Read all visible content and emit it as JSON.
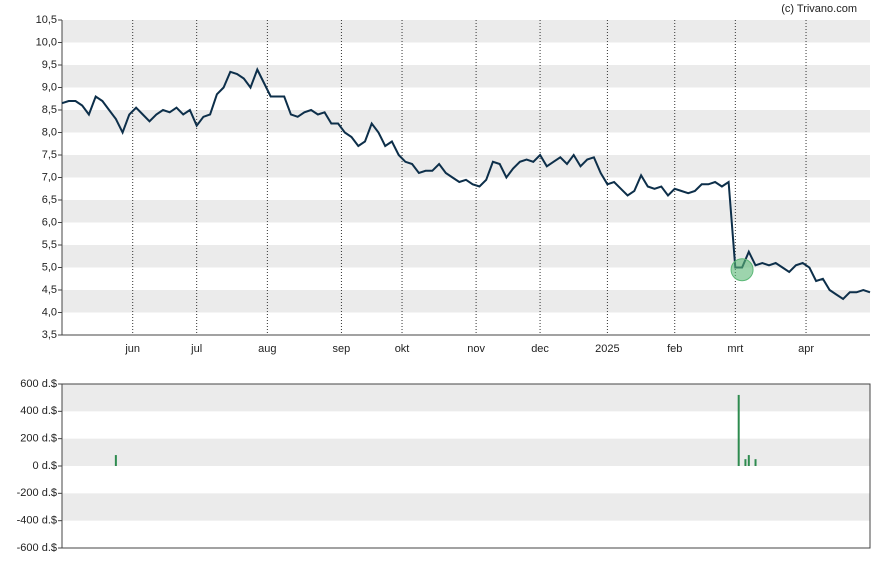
{
  "credit": "(c) Trivano.com",
  "chart_data": [
    {
      "type": "line",
      "color": "#0d2f4a",
      "x": [
        0,
        2,
        4,
        6,
        8,
        10,
        12,
        14,
        16,
        18,
        20,
        22,
        24,
        26,
        28,
        30,
        32,
        34,
        36,
        38,
        40,
        42,
        44,
        46,
        48,
        50,
        52,
        54,
        56,
        58,
        60,
        62,
        64,
        66,
        68,
        70,
        72,
        74,
        76,
        78,
        80,
        82,
        84,
        86,
        88,
        90,
        92,
        94,
        96,
        98,
        100,
        102,
        104,
        106,
        108,
        110,
        112,
        114,
        116,
        118,
        120,
        122,
        124,
        126,
        128,
        130,
        132,
        134,
        136,
        138,
        140,
        142,
        144,
        146,
        148,
        150,
        152,
        154,
        156,
        158,
        160,
        162,
        164,
        166,
        168,
        170,
        172,
        174,
        176,
        178,
        180,
        182,
        184,
        186,
        188,
        190,
        192,
        194,
        196,
        198,
        200,
        202,
        204,
        206,
        208,
        210,
        212,
        214,
        216,
        218,
        220,
        222,
        224,
        226,
        228,
        230,
        232,
        234,
        236,
        238,
        240
      ],
      "values": [
        8.65,
        8.7,
        8.7,
        8.6,
        8.4,
        8.8,
        8.7,
        8.5,
        8.3,
        8.0,
        8.4,
        8.55,
        8.4,
        8.25,
        8.4,
        8.5,
        8.45,
        8.55,
        8.4,
        8.5,
        8.15,
        8.35,
        8.4,
        8.85,
        9.0,
        9.35,
        9.3,
        9.2,
        9.0,
        9.4,
        9.1,
        8.8,
        8.8,
        8.8,
        8.4,
        8.35,
        8.45,
        8.5,
        8.4,
        8.45,
        8.2,
        8.2,
        8.0,
        7.9,
        7.7,
        7.8,
        8.2,
        8.0,
        7.7,
        7.8,
        7.5,
        7.35,
        7.3,
        7.1,
        7.15,
        7.15,
        7.3,
        7.1,
        7.0,
        6.9,
        6.95,
        6.85,
        6.8,
        6.95,
        7.35,
        7.3,
        7.0,
        7.2,
        7.35,
        7.4,
        7.35,
        7.5,
        7.25,
        7.35,
        7.45,
        7.3,
        7.5,
        7.25,
        7.4,
        7.45,
        7.1,
        6.85,
        6.9,
        6.75,
        6.6,
        6.7,
        7.05,
        6.8,
        6.75,
        6.8,
        6.6,
        6.75,
        6.7,
        6.65,
        6.7,
        6.85,
        6.85,
        6.9,
        6.8,
        6.9,
        5.0,
        5.0,
        5.35,
        5.05,
        5.1,
        5.05,
        5.1,
        5.0,
        4.9,
        5.05,
        5.1,
        5.0,
        4.7,
        4.75,
        4.5,
        4.4,
        4.3,
        4.45,
        4.45,
        4.5,
        4.45
      ],
      "marker": {
        "x": 202,
        "value": 4.95,
        "color": "#5cb877"
      },
      "xlim": [
        0,
        240
      ],
      "xticks": [
        {
          "value": 21,
          "label": "jun"
        },
        {
          "value": 40,
          "label": "jul"
        },
        {
          "value": 61,
          "label": "aug"
        },
        {
          "value": 83,
          "label": "sep"
        },
        {
          "value": 101,
          "label": "okt"
        },
        {
          "value": 123,
          "label": "nov"
        },
        {
          "value": 142,
          "label": "dec"
        },
        {
          "value": 162,
          "label": "2025"
        },
        {
          "value": 182,
          "label": "feb"
        },
        {
          "value": 200,
          "label": "mrt"
        },
        {
          "value": 221,
          "label": "apr"
        }
      ],
      "ylim": [
        3.5,
        10.5
      ],
      "yticks": [
        {
          "value": 10.5,
          "label": "10,5"
        },
        {
          "value": 10,
          "label": "10,0"
        },
        {
          "value": 9.5,
          "label": "9,5"
        },
        {
          "value": 9,
          "label": "9,0"
        },
        {
          "value": 8.5,
          "label": "8,5"
        },
        {
          "value": 8,
          "label": "8,0"
        },
        {
          "value": 7.5,
          "label": "7,5"
        },
        {
          "value": 7,
          "label": "7,0"
        },
        {
          "value": 6.5,
          "label": "6,5"
        },
        {
          "value": 6,
          "label": "6,0"
        },
        {
          "value": 5.5,
          "label": "5,5"
        },
        {
          "value": 5,
          "label": "5,0"
        },
        {
          "value": 4.5,
          "label": "4,5"
        },
        {
          "value": 4,
          "label": "4,0"
        },
        {
          "value": 3.5,
          "label": "3,5"
        }
      ]
    },
    {
      "type": "bar",
      "color": "#2e8b4f",
      "x": [
        16,
        201,
        203,
        204,
        206
      ],
      "values": [
        80,
        520,
        50,
        80,
        50
      ],
      "xlim": [
        0,
        240
      ],
      "ylim": [
        -600,
        600
      ],
      "yticks": [
        {
          "value": 600,
          "label": "600 d.$"
        },
        {
          "value": 400,
          "label": "400 d.$"
        },
        {
          "value": 200,
          "label": "200 d.$"
        },
        {
          "value": 0,
          "label": "0 d.$"
        },
        {
          "value": -200,
          "label": "-200 d.$"
        },
        {
          "value": -400,
          "label": "-400 d.$"
        },
        {
          "value": -600,
          "label": "-600 d.$"
        }
      ]
    }
  ]
}
